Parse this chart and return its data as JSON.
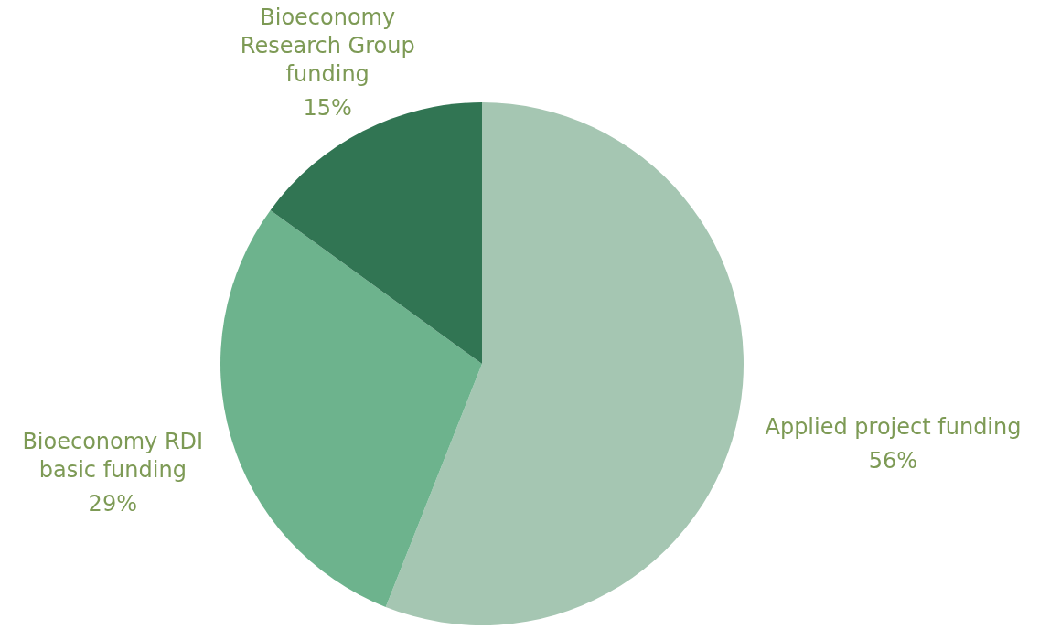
{
  "chart_data": {
    "type": "pie",
    "categories": [
      "Applied project funding",
      "Bioeconomy RDI basic funding",
      "Bioeconomy Research Group funding"
    ],
    "values": [
      56,
      29,
      15
    ],
    "colors": [
      "#a5c6b2",
      "#6db38d",
      "#317553"
    ],
    "value_labels": [
      "56%",
      "29%",
      "15%"
    ]
  }
}
